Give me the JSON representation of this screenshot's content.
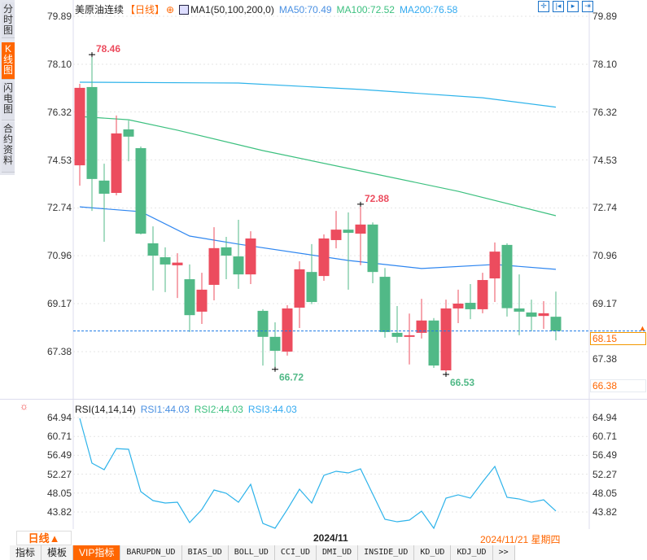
{
  "sidebar": {
    "items": [
      {
        "label": "分时图"
      },
      {
        "label": "K线图",
        "active": true
      },
      {
        "label": "闪电图"
      },
      {
        "label": "合约资料"
      }
    ]
  },
  "header": {
    "title": "美原油连续",
    "period": "【日线】",
    "indicator": "MA1(50,100,200,0)",
    "ma50": "MA50:70.49",
    "ma100": "MA100:72.52",
    "ma200": "MA200:76.58"
  },
  "tools": [
    "crosshair-icon",
    "zoom-start-icon",
    "play-icon",
    "go-latest-icon"
  ],
  "colors": {
    "up": "#ec4c5e",
    "down": "#51b987",
    "ma50": "#2e86f0",
    "ma100": "#3cc07f",
    "ma200": "#2db3ea",
    "accent": "#ff6600",
    "rsi": "#2db3ea"
  },
  "price_axis": {
    "ticks": [
      "79.89",
      "78.10",
      "76.32",
      "74.53",
      "72.74",
      "70.96",
      "69.17",
      "67.38"
    ],
    "current": "68.15",
    "low_mark": "66.38"
  },
  "annotations": {
    "high": "78.46",
    "mid_high": "72.88",
    "low1": "66.72",
    "low2": "66.53"
  },
  "chart_data": [
    {
      "type": "candlestick",
      "ylim": [
        66.2,
        80.2
      ],
      "candles": [
        [
          74.33,
          77.37,
          73.57,
          77.22
        ],
        [
          77.25,
          78.46,
          72.63,
          73.82
        ],
        [
          73.76,
          74.39,
          71.48,
          73.27
        ],
        [
          73.3,
          76.19,
          73.21,
          75.52
        ],
        [
          75.67,
          76.0,
          74.48,
          75.4
        ],
        [
          74.97,
          75.03,
          71.75,
          71.78
        ],
        [
          71.42,
          72.05,
          69.66,
          70.96
        ],
        [
          70.9,
          71.27,
          69.6,
          70.63
        ],
        [
          70.6,
          71.05,
          69.38,
          70.7
        ],
        [
          70.08,
          70.63,
          68.11,
          68.74
        ],
        [
          68.87,
          70.32,
          68.41,
          69.69
        ],
        [
          69.87,
          72.02,
          69.29,
          71.24
        ],
        [
          71.27,
          71.66,
          70.08,
          70.96
        ],
        [
          70.93,
          72.3,
          69.72,
          70.26
        ],
        [
          70.26,
          71.87,
          69.9,
          71.6
        ],
        [
          68.9,
          68.96,
          66.86,
          67.93
        ],
        [
          67.93,
          68.47,
          66.72,
          67.41
        ],
        [
          67.38,
          69.11,
          67.23,
          68.99
        ],
        [
          69.02,
          70.75,
          68.26,
          70.45
        ],
        [
          70.35,
          71.39,
          69.15,
          69.23
        ],
        [
          70.2,
          71.75,
          70.02,
          71.6
        ],
        [
          71.54,
          72.63,
          71.23,
          71.93
        ],
        [
          71.93,
          72.57,
          69.69,
          71.81
        ],
        [
          71.78,
          72.88,
          70.6,
          72.12
        ],
        [
          72.12,
          72.2,
          69.93,
          70.35
        ],
        [
          70.17,
          70.5,
          67.9,
          68.11
        ],
        [
          68.08,
          69.08,
          67.71,
          67.93
        ],
        [
          67.95,
          68.8,
          66.9,
          67.99
        ],
        [
          68.08,
          69.35,
          67.87,
          68.54
        ],
        [
          68.54,
          68.63,
          66.77,
          66.86
        ],
        [
          66.68,
          69.32,
          66.53,
          68.99
        ],
        [
          68.99,
          69.69,
          68.44,
          69.17
        ],
        [
          69.2,
          69.9,
          68.59,
          68.96
        ],
        [
          68.96,
          70.32,
          68.81,
          70.05
        ],
        [
          70.11,
          71.45,
          69.23,
          71.11
        ],
        [
          71.36,
          71.42,
          68.69,
          69.0
        ],
        [
          68.99,
          70.26,
          67.99,
          68.87
        ],
        [
          68.84,
          69.32,
          68.14,
          68.68
        ],
        [
          68.71,
          69.26,
          68.23,
          68.81
        ],
        [
          68.68,
          69.62,
          67.8,
          68.15
        ]
      ],
      "ma": {
        "ma50": [
          [
            0,
            72.78
          ],
          [
            5,
            72.6
          ],
          [
            9,
            71.69
          ],
          [
            13,
            71.39
          ],
          [
            22,
            70.78
          ],
          [
            28,
            70.48
          ],
          [
            34,
            70.63
          ],
          [
            39,
            70.45
          ]
        ],
        "ma100": [
          [
            0,
            76.15
          ],
          [
            4,
            76.03
          ],
          [
            8,
            75.64
          ],
          [
            15,
            74.88
          ],
          [
            23,
            74.12
          ],
          [
            31,
            73.36
          ],
          [
            39,
            72.45
          ]
        ],
        "ma200": [
          [
            0,
            77.43
          ],
          [
            13,
            77.4
          ],
          [
            23,
            77.16
          ],
          [
            33,
            76.85
          ],
          [
            39,
            76.5
          ]
        ]
      }
    },
    {
      "type": "line",
      "title": "RSI(14,14,14)",
      "legend": [
        "RSI1:44.03",
        "RSI2:44.03",
        "RSI3:44.03"
      ],
      "ticks": [
        "64.94",
        "60.71",
        "56.49",
        "52.27",
        "48.05",
        "43.82"
      ],
      "ylim": [
        39.5,
        66
      ],
      "values": [
        64.76,
        54.74,
        53.28,
        58.0,
        57.84,
        48.36,
        46.36,
        45.81,
        45.99,
        41.44,
        44.36,
        48.73,
        48.0,
        45.99,
        50.0,
        41.26,
        40.17,
        44.36,
        48.91,
        45.81,
        52.01,
        52.92,
        52.55,
        53.46,
        47.82,
        42.17,
        41.62,
        41.99,
        43.99,
        40.17,
        46.91,
        47.64,
        46.91,
        50.55,
        54.01,
        47.09,
        46.72,
        45.99,
        46.54,
        44.03
      ]
    }
  ],
  "bottom": {
    "period_button": "日线▲",
    "month": "2024/11",
    "date": "2024/11/21 星期四"
  },
  "tabs": [
    "指标",
    "模板",
    "VIP指标",
    "BARUPDN_UD",
    "BIAS_UD",
    "BOLL_UD",
    "CCI_UD",
    "DMI_UD",
    "INSIDE_UD",
    "KD_UD",
    "KDJ_UD",
    ">>"
  ]
}
